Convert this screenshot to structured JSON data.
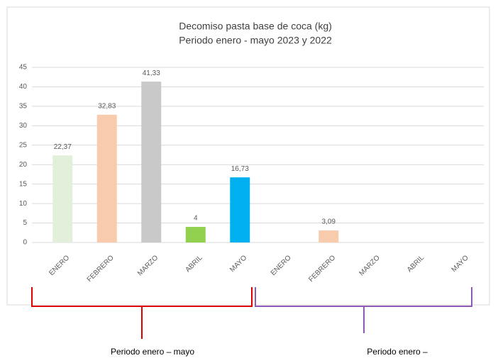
{
  "chart_data": {
    "type": "bar",
    "title": "Decomiso pasta base de coca (kg)",
    "subtitle": "Periodo enero - mayo 2023 y 2022",
    "categories": [
      "ENERO",
      "FEBRERO",
      "MARZO",
      "ABRIL",
      "MAYO",
      "ENERO",
      "FEBRERO",
      "MARZO",
      "ABRIL",
      "MAYO"
    ],
    "values": [
      22.37,
      32.83,
      41.33,
      4,
      16.73,
      null,
      3.09,
      null,
      null,
      null
    ],
    "value_labels": [
      "22,37",
      "32,83",
      "41,33",
      "4",
      "16,73",
      null,
      "3,09",
      null,
      null,
      null
    ],
    "colors": [
      "#e2efda",
      "#f8cbad",
      "#c9c9c9",
      "#92d050",
      "#00b0f0",
      "#e2efda",
      "#f8cbad",
      "#c9c9c9",
      "#92d050",
      "#00b0f0"
    ],
    "ylim": [
      0,
      45
    ],
    "yticks": [
      0,
      5,
      10,
      15,
      20,
      25,
      30,
      35,
      40,
      45
    ],
    "grid": true,
    "annotations": [
      {
        "text": "Periodo enero – mayo",
        "color": "#e00000"
      },
      {
        "text": "Periodo enero –",
        "color": "#8e5bb5"
      }
    ]
  }
}
